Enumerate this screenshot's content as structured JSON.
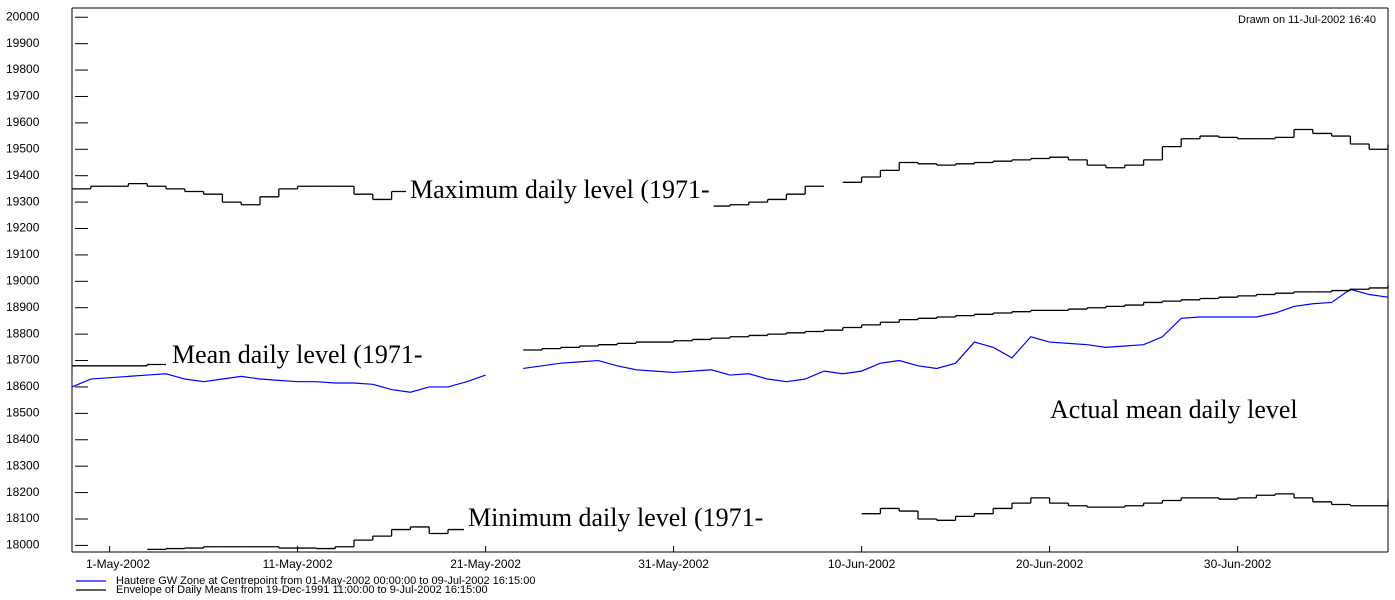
{
  "chart_data": {
    "type": "line",
    "drawn_note": "Drawn on 11-Jul-2002 16:40",
    "annotations": [
      "Maximum daily level (1971-",
      "Mean daily level (1971-",
      "Actual mean daily level",
      "Minimum daily level (1971-"
    ],
    "x": [
      "29-Apr-2002",
      "30-Apr-2002",
      "1-May-2002",
      "2-May-2002",
      "3-May-2002",
      "4-May-2002",
      "5-May-2002",
      "6-May-2002",
      "7-May-2002",
      "8-May-2002",
      "9-May-2002",
      "10-May-2002",
      "11-May-2002",
      "12-May-2002",
      "13-May-2002",
      "14-May-2002",
      "15-May-2002",
      "16-May-2002",
      "17-May-2002",
      "18-May-2002",
      "19-May-2002",
      "20-May-2002",
      "21-May-2002",
      "22-May-2002",
      "23-May-2002",
      "24-May-2002",
      "25-May-2002",
      "26-May-2002",
      "27-May-2002",
      "28-May-2002",
      "29-May-2002",
      "30-May-2002",
      "31-May-2002",
      "1-Jun-2002",
      "2-Jun-2002",
      "3-Jun-2002",
      "4-Jun-2002",
      "5-Jun-2002",
      "6-Jun-2002",
      "7-Jun-2002",
      "8-Jun-2002",
      "9-Jun-2002",
      "10-Jun-2002",
      "11-Jun-2002",
      "12-Jun-2002",
      "13-Jun-2002",
      "14-Jun-2002",
      "15-Jun-2002",
      "16-Jun-2002",
      "17-Jun-2002",
      "18-Jun-2002",
      "19-Jun-2002",
      "20-Jun-2002",
      "21-Jun-2002",
      "22-Jun-2002",
      "23-Jun-2002",
      "24-Jun-2002",
      "25-Jun-2002",
      "26-Jun-2002",
      "27-Jun-2002",
      "28-Jun-2002",
      "29-Jun-2002",
      "30-Jun-2002",
      "1-Jul-2002",
      "2-Jul-2002",
      "3-Jul-2002",
      "4-Jul-2002",
      "5-Jul-2002",
      "6-Jul-2002",
      "7-Jul-2002",
      "8-Jul-2002"
    ],
    "series": [
      {
        "name": "Hautere GW Zone at Centrepoint from 01-May-2002 00:00:00 to 09-Jul-2002 16:15:00",
        "color": "#0000ff",
        "values": [
          18600,
          18630,
          18635,
          18640,
          18645,
          18650,
          18630,
          18620,
          18630,
          18640,
          18630,
          18625,
          18620,
          18620,
          18615,
          18615,
          18610,
          18590,
          18580,
          18600,
          18600,
          18620,
          18645,
          null,
          18670,
          18680,
          18690,
          18695,
          18700,
          18680,
          18665,
          18660,
          18655,
          18660,
          18665,
          18645,
          18650,
          18630,
          18620,
          18630,
          18660,
          18650,
          18660,
          18690,
          18700,
          18680,
          18670,
          18690,
          18770,
          18750,
          18710,
          18790,
          18770,
          18765,
          18760,
          18750,
          18755,
          18760,
          18790,
          18860,
          18865,
          18865,
          18865,
          18865,
          18880,
          18905,
          18915,
          18920,
          18970,
          18950,
          18940
        ]
      },
      {
        "name": "Envelope of Daily Means from 19-Dec-1991 11:00:00 to  9-Jul-2002 16:15:00",
        "color": "#000000",
        "step": true,
        "lines": [
          [
            19350,
            19360,
            19360,
            19370,
            19360,
            19350,
            19340,
            19330,
            19300,
            19290,
            19320,
            19350,
            19360,
            19360,
            19360,
            19330,
            19310,
            19340,
            19335,
            19330,
            19330,
            19325,
            19340,
            19355,
            19330,
            19315,
            19315,
            19335,
            19320,
            19300,
            19305,
            19320,
            19300,
            19290,
            19285,
            19290,
            19300,
            19310,
            19330,
            19360,
            null,
            19375,
            19395,
            19420,
            19450,
            19445,
            19440,
            19445,
            19450,
            19455,
            19460,
            19465,
            19470,
            19460,
            19440,
            19430,
            19440,
            19460,
            19510,
            19540,
            19550,
            19545,
            19540,
            19540,
            19545,
            19575,
            19560,
            19550,
            19520,
            19500,
            19520
          ],
          [
            18680,
            18680,
            18680,
            18680,
            18685,
            null,
            null,
            null,
            null,
            null,
            null,
            null,
            null,
            null,
            null,
            null,
            null,
            null,
            null,
            null,
            null,
            null,
            null,
            null,
            18740,
            18745,
            18750,
            18755,
            18760,
            18765,
            18770,
            18770,
            18775,
            18780,
            18785,
            18790,
            18795,
            18800,
            18805,
            18810,
            18815,
            18825,
            18835,
            18845,
            18855,
            18860,
            18865,
            18870,
            18875,
            18880,
            18885,
            18890,
            18890,
            18895,
            18900,
            18905,
            18910,
            18920,
            18925,
            18930,
            18935,
            18940,
            18945,
            18950,
            18955,
            18960,
            18960,
            18965,
            18970,
            18975,
            18985
          ],
          [
            null,
            null,
            null,
            null,
            17985,
            17988,
            17990,
            17995,
            17995,
            17995,
            17995,
            17990,
            17990,
            17988,
            17995,
            18020,
            18035,
            18060,
            18070,
            18045,
            18060,
            null,
            null,
            null,
            null,
            null,
            null,
            null,
            null,
            null,
            null,
            null,
            null,
            null,
            null,
            null,
            null,
            null,
            null,
            null,
            null,
            null,
            18120,
            18140,
            18130,
            18100,
            18095,
            18110,
            18120,
            18140,
            18160,
            18180,
            18160,
            18150,
            18145,
            18145,
            18150,
            18160,
            18170,
            18180,
            18180,
            18175,
            18180,
            18190,
            18195,
            18180,
            18165,
            18155,
            18150,
            18150,
            18170
          ]
        ]
      }
    ],
    "xlim": [
      "29-Apr-2002",
      "8-Jul-2002"
    ],
    "xticks": [
      "1-May-2002",
      "11-May-2002",
      "21-May-2002",
      "31-May-2002",
      "10-Jun-2002",
      "20-Jun-2002",
      "30-Jun-2002"
    ],
    "ylim": [
      17975,
      20035
    ],
    "yticks": [
      18000,
      18100,
      18200,
      18300,
      18400,
      18500,
      18600,
      18700,
      18800,
      18900,
      19000,
      19100,
      19200,
      19300,
      19400,
      19500,
      19600,
      19700,
      19800,
      19900,
      20000
    ]
  }
}
